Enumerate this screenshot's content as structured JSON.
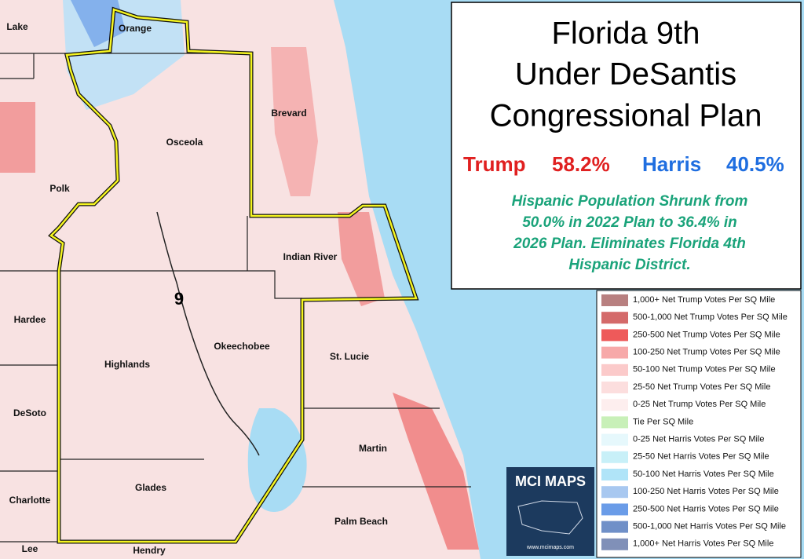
{
  "header": {
    "title": [
      "Florida 9th",
      "Under DeSantis",
      "Congressional Plan"
    ],
    "results": [
      {
        "name": "Trump",
        "pct": "58.2%"
      },
      {
        "name": "Harris",
        "pct": "40.5%"
      }
    ],
    "subtitle": [
      "Hispanic Population Shrunk from",
      "50.0% in 2022 Plan to 36.4% in",
      "2026 Plan.  Eliminates Florida 4th",
      "Hispanic District."
    ]
  },
  "map": {
    "district": "9",
    "counties": [
      "Lake",
      "Orange",
      "Brevard",
      "Osceola",
      "Polk",
      "Indian River",
      "Hardee",
      "Okeechobee",
      "St. Lucie",
      "Highlands",
      "DeSoto",
      "Martin",
      "Glades",
      "Charlotte",
      "Palm Beach",
      "Lee",
      "Hendry"
    ]
  },
  "legend": [
    {
      "label": "1,000+ Net Trump Votes Per SQ Mile",
      "color": "#b88080"
    },
    {
      "label": "500-1,000 Net Trump Votes Per SQ Mile",
      "color": "#d46a6a"
    },
    {
      "label": "250-500 Net Trump Votes Per SQ Mile",
      "color": "#ee5a5a"
    },
    {
      "label": "100-250 Net Trump Votes Per SQ Mile",
      "color": "#f7a9a9"
    },
    {
      "label": "50-100 Net Trump Votes Per SQ Mile",
      "color": "#fbcaca"
    },
    {
      "label": "25-50 Net Trump Votes Per SQ Mile",
      "color": "#fcdede"
    },
    {
      "label": "0-25 Net Trump Votes Per SQ Mile",
      "color": "#fdeeee"
    },
    {
      "label": "Tie Per SQ Mile",
      "color": "#c8f0b8"
    },
    {
      "label": "0-25 Net Harris Votes Per SQ Mile",
      "color": "#e6f8fc"
    },
    {
      "label": "25-50 Net Harris Votes Per SQ Mile",
      "color": "#c8f0f8"
    },
    {
      "label": "50-100 Net Harris Votes Per SQ Mile",
      "color": "#b0e4f8"
    },
    {
      "label": "100-250 Net Harris Votes Per SQ Mile",
      "color": "#a8c8f0"
    },
    {
      "label": "250-500 Net Harris Votes Per SQ Mile",
      "color": "#6a9ce8"
    },
    {
      "label": "500-1,000 Net Harris Votes Per SQ Mile",
      "color": "#7090c8"
    },
    {
      "label": "1,000+ Net Harris Votes Per SQ Mile",
      "color": "#8090b8"
    }
  ],
  "logo": {
    "name": "MCI MAPS",
    "url": "www.mcimaps.com"
  }
}
